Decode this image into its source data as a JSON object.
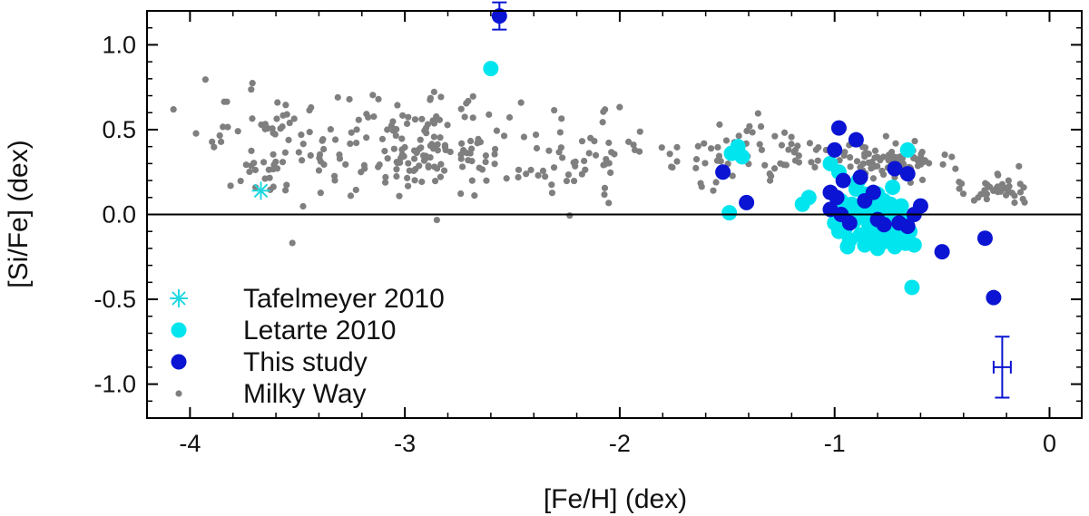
{
  "chart_data": {
    "type": "scatter",
    "xlabel": "[Fe/H] (dex)",
    "ylabel": "[Si/Fe] (dex)",
    "xlim": [
      -4.2,
      0.15
    ],
    "ylim": [
      -1.2,
      1.2
    ],
    "xticks": [
      -4,
      -3,
      -2,
      -1,
      0
    ],
    "xtick_labels": [
      "-4",
      "-3",
      "-2",
      "-1",
      "0"
    ],
    "yticks": [
      -1.0,
      -0.5,
      0.0,
      0.5,
      1.0
    ],
    "ytick_labels": [
      "-1.0",
      "-0.5",
      "0.0",
      "0.5",
      "1.0"
    ],
    "zero_line": 0.0,
    "grid": false,
    "legend_position": "bottom-left",
    "series": [
      {
        "name": "Tafelmeyer 2010",
        "marker": "asterisk",
        "color": "#22d8e0",
        "points": [
          [
            -3.67,
            0.14
          ]
        ]
      },
      {
        "name": "Letarte 2010",
        "marker": "circle",
        "color": "#00e5ee",
        "points": [
          [
            -2.6,
            0.86
          ],
          [
            -1.49,
            0.01
          ],
          [
            -1.48,
            0.36
          ],
          [
            -1.45,
            0.4
          ],
          [
            -1.43,
            0.34
          ],
          [
            -1.15,
            0.06
          ],
          [
            -1.12,
            0.1
          ],
          [
            -1.02,
            0.3
          ],
          [
            -0.98,
            0.25
          ],
          [
            -1.0,
            -0.05
          ],
          [
            -0.98,
            -0.1
          ],
          [
            -0.96,
            0.02
          ],
          [
            -0.95,
            -0.08
          ],
          [
            -0.93,
            -0.15
          ],
          [
            -0.92,
            0.06
          ],
          [
            -0.9,
            -0.02
          ],
          [
            -0.9,
            0.15
          ],
          [
            -0.88,
            -0.12
          ],
          [
            -0.87,
            0.05
          ],
          [
            -0.86,
            -0.18
          ],
          [
            -0.85,
            0.0
          ],
          [
            -0.84,
            -0.06
          ],
          [
            -0.83,
            0.1
          ],
          [
            -0.82,
            -0.14
          ],
          [
            -0.81,
            -0.03
          ],
          [
            -0.8,
            0.04
          ],
          [
            -0.8,
            -0.2
          ],
          [
            -0.79,
            -0.09
          ],
          [
            -0.78,
            0.02
          ],
          [
            -0.77,
            -0.16
          ],
          [
            -0.76,
            -0.01
          ],
          [
            -0.75,
            -0.12
          ],
          [
            -0.74,
            0.06
          ],
          [
            -0.73,
            -0.05
          ],
          [
            -0.72,
            -0.19
          ],
          [
            -0.71,
            -0.08
          ],
          [
            -0.7,
            0.0
          ],
          [
            -0.69,
            -0.14
          ],
          [
            -0.68,
            -0.03
          ],
          [
            -0.67,
            -0.17
          ],
          [
            -0.66,
            0.38
          ],
          [
            -0.65,
            -0.1
          ],
          [
            -0.64,
            -0.43
          ],
          [
            -0.63,
            -0.18
          ],
          [
            -0.94,
            -0.19
          ],
          [
            -0.89,
            0.2
          ],
          [
            -0.86,
            0.12
          ],
          [
            -0.77,
            0.08
          ],
          [
            -0.73,
            0.16
          ],
          [
            -0.69,
            0.05
          ],
          [
            -0.97,
            0.08
          ],
          [
            -0.91,
            -0.04
          ],
          [
            -0.83,
            -0.1
          ],
          [
            -0.8,
            0.12
          ],
          [
            -0.75,
            0.03
          ]
        ]
      },
      {
        "name": "This study",
        "marker": "circle",
        "color": "#0a14d2",
        "points": [
          [
            -2.56,
            1.17
          ],
          [
            -1.52,
            0.25
          ],
          [
            -1.41,
            0.07
          ],
          [
            -0.98,
            0.51
          ],
          [
            -1.0,
            0.38
          ],
          [
            -0.96,
            0.2
          ],
          [
            -1.02,
            0.13
          ],
          [
            -0.99,
            0.1
          ],
          [
            -1.02,
            0.03
          ],
          [
            -0.97,
            0.0
          ],
          [
            -0.93,
            -0.05
          ],
          [
            -0.9,
            0.44
          ],
          [
            -0.88,
            0.22
          ],
          [
            -0.86,
            0.08
          ],
          [
            -0.82,
            0.13
          ],
          [
            -0.8,
            -0.03
          ],
          [
            -0.77,
            -0.06
          ],
          [
            -0.72,
            0.27
          ],
          [
            -0.7,
            -0.05
          ],
          [
            -0.66,
            -0.07
          ],
          [
            -0.63,
            0.0
          ],
          [
            -0.6,
            0.05
          ],
          [
            -0.5,
            -0.22
          ],
          [
            -0.3,
            -0.14
          ],
          [
            -0.26,
            -0.49
          ],
          [
            -0.66,
            0.24
          ]
        ],
        "error_bars": [
          {
            "x": -2.56,
            "y": 1.17,
            "yerr": 0.08,
            "xerr": 0.0
          },
          {
            "x": -0.22,
            "y": -0.9,
            "yerr": 0.18,
            "xerr": 0.04
          }
        ]
      },
      {
        "name": "Milky Way",
        "marker": "dot",
        "color": "#7f7f7f",
        "points": []
      }
    ]
  },
  "legend": {
    "items": [
      {
        "label": "Tafelmeyer 2010",
        "marker": "asterisk",
        "color": "#22d8e0"
      },
      {
        "label": "Letarte 2010",
        "marker": "circle",
        "color": "#00e5ee"
      },
      {
        "label": "This study",
        "marker": "circle",
        "color": "#0a14d2"
      },
      {
        "label": "Milky Way",
        "marker": "dot",
        "color": "#7f7f7f"
      }
    ]
  }
}
